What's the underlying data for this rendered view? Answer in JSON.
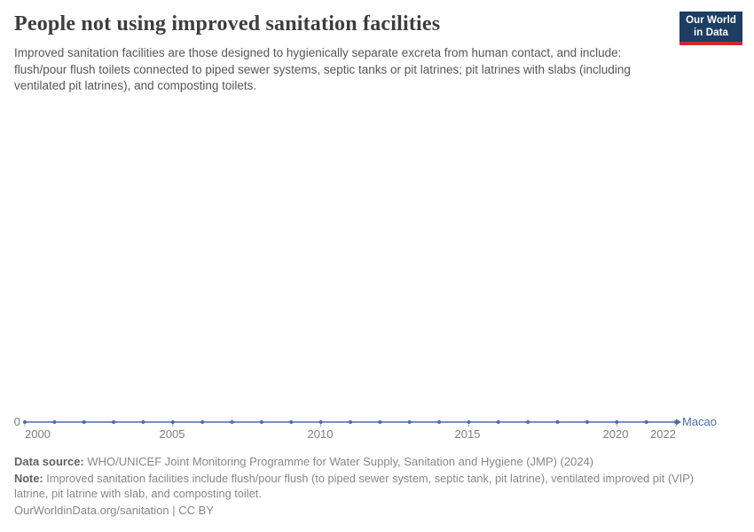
{
  "header": {
    "title": "People not using improved sanitation facilities",
    "subtitle": "Improved sanitation facilities are those designed to hygienically separate excreta from human contact, and include: flush/pour flush toilets connected to piped sewer systems, septic tanks or pit latrines; pit latrines with slabs (including ventilated pit latrines), and composting toilets.",
    "logo": {
      "line1": "Our World",
      "line2": "in Data"
    }
  },
  "chart_data": {
    "type": "line",
    "title": "People not using improved sanitation facilities",
    "xlabel": "",
    "ylabel": "",
    "x": [
      2000,
      2001,
      2002,
      2003,
      2004,
      2005,
      2006,
      2007,
      2008,
      2009,
      2010,
      2011,
      2012,
      2013,
      2014,
      2015,
      2016,
      2017,
      2018,
      2019,
      2020,
      2021,
      2022
    ],
    "series": [
      {
        "name": "Macao",
        "color": "#4c6ba8",
        "values": [
          0,
          0,
          0,
          0,
          0,
          0,
          0,
          0,
          0,
          0,
          0,
          0,
          0,
          0,
          0,
          0,
          0,
          0,
          0,
          0,
          0,
          0,
          0
        ]
      }
    ],
    "x_range": [
      2000,
      2022
    ],
    "y_ticks": [
      0
    ],
    "x_ticks": [
      2000,
      2005,
      2010,
      2015,
      2020,
      2022
    ],
    "x_tick_labels": [
      "2000",
      "2005",
      "2010",
      "2015",
      "2020",
      "2022"
    ],
    "grid": false,
    "legend_position": "end-of-line"
  },
  "footer": {
    "datasource_label": "Data source:",
    "datasource_text": "WHO/UNICEF Joint Monitoring Programme for Water Supply, Sanitation and Hygiene (JMP) (2024)",
    "note_label": "Note:",
    "note_text": "Improved sanitation facilities include flush/pour flush (to piped sewer system, septic tank, pit latrine), ventilated improved pit (VIP) latrine, pit latrine with slab, and composting toilet.",
    "origin": "OurWorldinData.org/sanitation | CC BY"
  },
  "colors": {
    "series_blue": "#4c6ba8",
    "logo_navy": "#1d3d63",
    "logo_red": "#d4262c",
    "tick_gray": "#7e7e7e"
  }
}
